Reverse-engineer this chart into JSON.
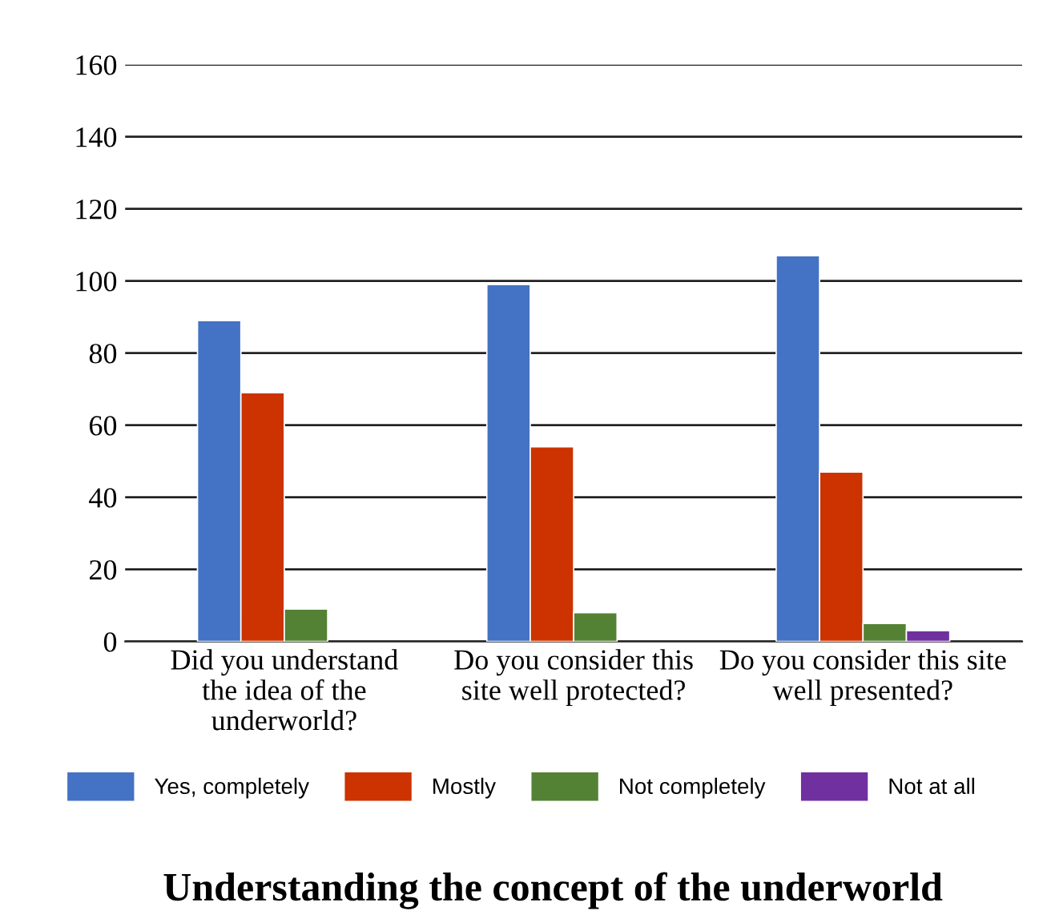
{
  "chart_data": {
    "type": "bar",
    "title": "Understanding the concept of the underworld",
    "categories": [
      "Did you understand\nthe idea of the\nunderworld?",
      "Do you consider this\nsite well protected?",
      "Do you consider this site\nwell presented?"
    ],
    "series": [
      {
        "name": "Yes, completely",
        "color": "#4472c4",
        "values": [
          89,
          99,
          107
        ]
      },
      {
        "name": "Mostly",
        "color": "#cc3300",
        "values": [
          69,
          54,
          47
        ]
      },
      {
        "name": "Not completely",
        "color": "#548235",
        "values": [
          9,
          8,
          5
        ]
      },
      {
        "name": "Not at all",
        "color": "#7030a0",
        "values": [
          null,
          null,
          3
        ]
      }
    ],
    "ylim": [
      0,
      160
    ],
    "yticks": [
      0,
      20,
      40,
      60,
      80,
      100,
      120,
      140,
      160
    ],
    "grid": "y",
    "legend": "bottom"
  }
}
